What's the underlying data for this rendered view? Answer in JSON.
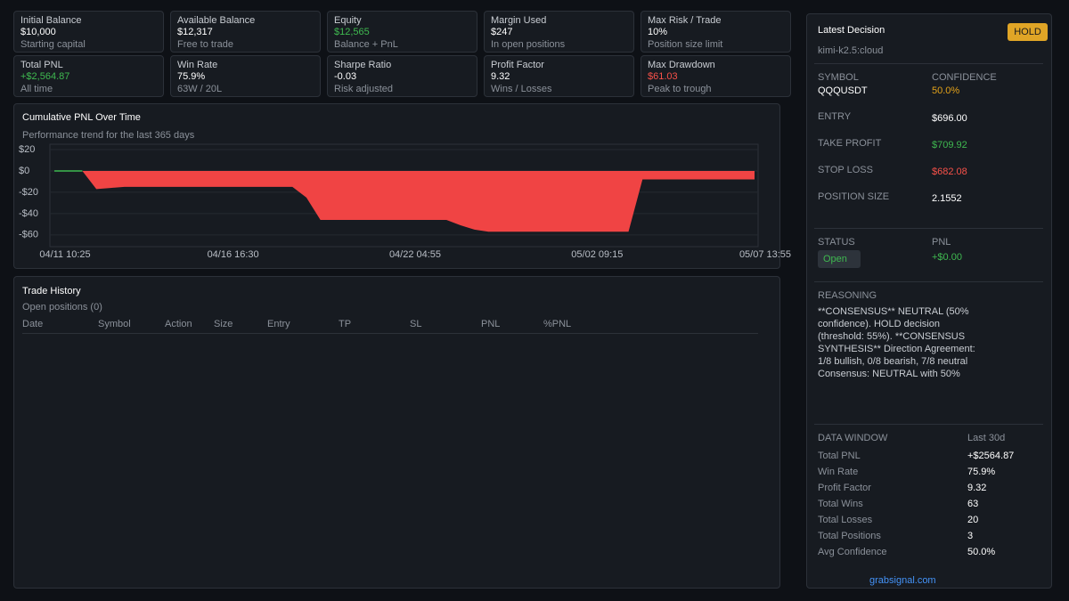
{
  "stats": [
    {
      "label": "Initial Balance",
      "value": "$10,000",
      "note": "Starting capital"
    },
    {
      "label": "Available Balance",
      "value": "$12,317",
      "note": "Free to trade"
    },
    {
      "label": "Equity",
      "value": "$12,565",
      "note": "Balance + PnL",
      "color": "#3fb950"
    },
    {
      "label": "Margin Used",
      "value": "$247",
      "note": "In open positions"
    },
    {
      "label": "Max Risk / Trade",
      "value": "10%",
      "note": "Position size limit"
    },
    {
      "label": "Total PNL",
      "value": "+$2,564.87",
      "note": "All time",
      "color": "#3fb950"
    },
    {
      "label": "Win Rate",
      "value": "75.9%",
      "note": "63W / 20L"
    },
    {
      "label": "Sharpe Ratio",
      "value": "-0.03",
      "note": "Risk adjusted"
    },
    {
      "label": "Profit Factor",
      "value": "9.32",
      "note": "Wins / Losses"
    },
    {
      "label": "Max Drawdown",
      "value": "$61.03",
      "note": "Peak to trough",
      "color": "#f85149"
    }
  ],
  "chart_data": {
    "type": "area",
    "title": "Cumulative PNL Over Time",
    "subtitle": "Performance trend for the last 365 days",
    "categories": [
      "04/11 10:25",
      null,
      null,
      null,
      null,
      null,
      null,
      null,
      null,
      null,
      null,
      null,
      "04/16 16:30",
      null,
      null,
      null,
      null,
      null,
      null,
      null,
      null,
      null,
      null,
      null,
      null,
      "04/22 04:55",
      null,
      null,
      null,
      null,
      null,
      null,
      null,
      null,
      null,
      null,
      null,
      null,
      "05/02 09:15",
      null,
      null,
      null,
      null,
      null,
      null,
      null,
      null,
      null,
      null,
      null,
      "05/07 13:55"
    ],
    "values": [
      0,
      0,
      0,
      -17,
      -16,
      -15,
      -15,
      -15,
      -15,
      -15,
      -15,
      -15,
      -15,
      -15,
      -15,
      -15,
      -15,
      -15,
      -25,
      -46,
      -46,
      -46,
      -46,
      -46,
      -46,
      -46,
      -46,
      -46,
      -46,
      -51,
      -55,
      -57,
      -57,
      -57,
      -57,
      -57,
      -57,
      -57,
      -57,
      -57,
      -57,
      -57,
      -8,
      -8,
      -8,
      -8,
      -8,
      -8,
      -8,
      -8,
      -8
    ],
    "color": "#f04444",
    "line_color": "#3fb950",
    "ylim": [
      -71,
      25
    ],
    "yticks": [
      {
        "value": 20,
        "label": "$20"
      },
      {
        "value": 0,
        "label": "$0"
      },
      {
        "value": -20,
        "label": "-$20"
      },
      {
        "value": -40,
        "label": "-$40"
      },
      {
        "value": -60,
        "label": "-$60"
      }
    ],
    "grid": true
  },
  "trades": {
    "title": "Trade History",
    "subtitle": "Open positions (0)",
    "columns": [
      "Date",
      "Symbol",
      "Action",
      "Size",
      "Entry",
      "TP",
      "SL",
      "PNL",
      "%PNL"
    ]
  },
  "decision": {
    "title": "Latest Decision",
    "badge": "HOLD",
    "model": "kimi-k2.5:cloud",
    "fields": [
      {
        "label": "SYMBOL",
        "value": "QQQUSDT"
      },
      {
        "label": "CONFIDENCE",
        "value": "50.0%",
        "color": "#e3a21a"
      },
      {
        "label": "ENTRY",
        "value": "$696.00"
      },
      {
        "label": "TAKE PROFIT",
        "value": "$709.92",
        "color": "#3fb950"
      },
      {
        "label": "STOP LOSS",
        "value": "$682.08",
        "color": "#f85149"
      },
      {
        "label": "POSITION SIZE",
        "value": "2.1552"
      }
    ],
    "status": {
      "label": "STATUS",
      "value": "Open"
    },
    "pnl": {
      "label": "PNL",
      "value": "+$0.00",
      "color": "#3fb950"
    },
    "reasoning_label": "REASONING",
    "reasoning": "**CONSENSUS** NEUTRAL (50% confidence). HOLD decision (threshold: 55%). **CONSENSUS SYNTHESIS** Direction Agreement: 1/8 bullish, 0/8 bearish, 7/8 neutral Consensus: NEUTRAL with 50%",
    "window_label": "DATA WINDOW",
    "window": "Last 30d",
    "rows": [
      {
        "label": "Total PNL",
        "value": "+$2564.87"
      },
      {
        "label": "Win Rate",
        "value": "75.9%"
      },
      {
        "label": "Profit Factor",
        "value": "9.32"
      },
      {
        "label": "Total Wins",
        "value": "63"
      },
      {
        "label": "Total Losses",
        "value": "20"
      },
      {
        "label": "Total Positions",
        "value": "3"
      },
      {
        "label": "Avg Confidence",
        "value": "50.0%"
      }
    ],
    "footer": "grabsignal.com"
  }
}
